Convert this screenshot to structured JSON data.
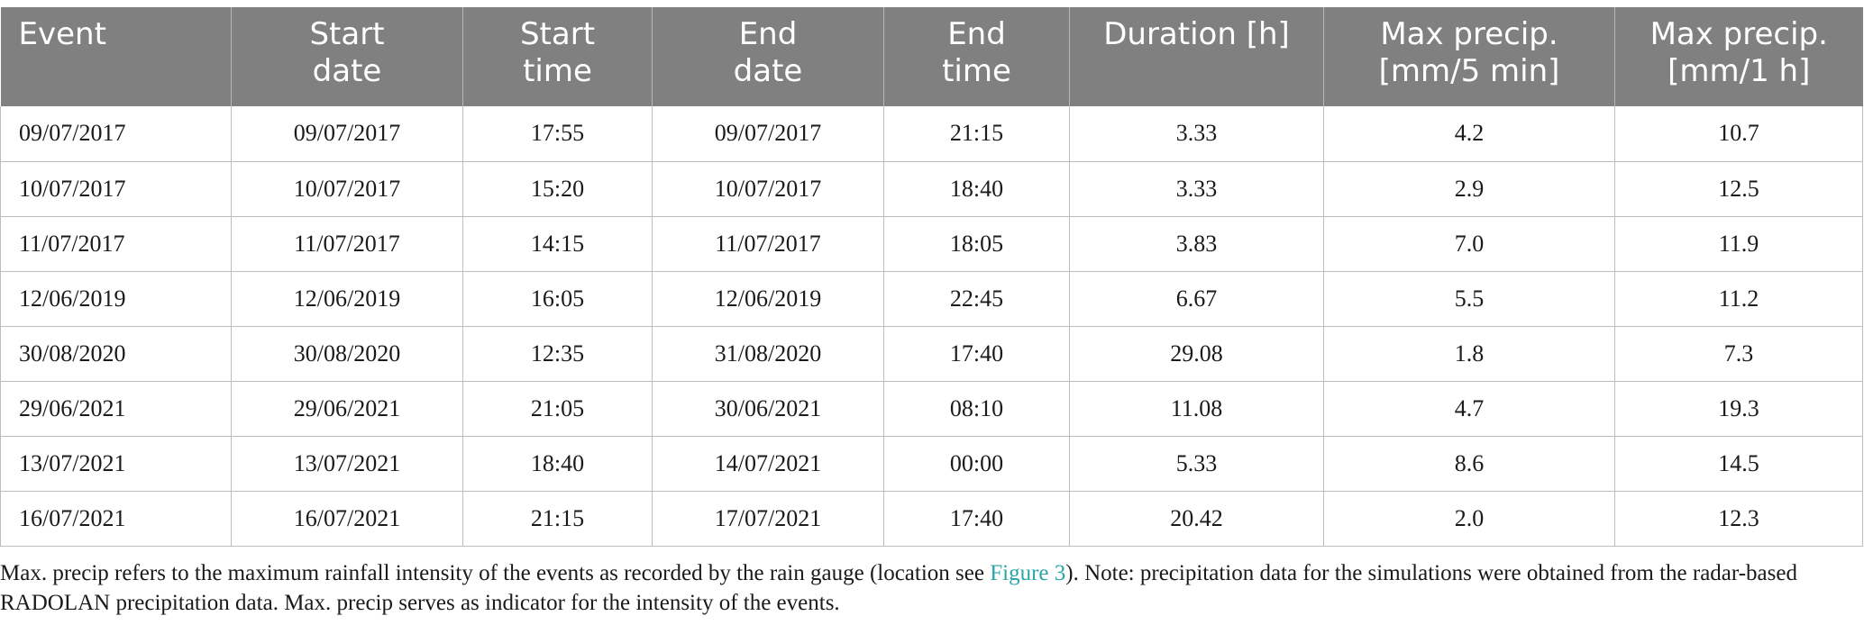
{
  "table": {
    "headers": [
      [
        "Event",
        ""
      ],
      [
        "Start",
        "date"
      ],
      [
        "Start",
        "time"
      ],
      [
        "End",
        "date"
      ],
      [
        "End",
        "time"
      ],
      [
        "Duration [h]",
        ""
      ],
      [
        "Max precip.",
        "[mm/5 min]"
      ],
      [
        "Max precip.",
        "[mm/1 h]"
      ]
    ],
    "rows": [
      [
        "09/07/2017",
        "09/07/2017",
        "17:55",
        "09/07/2017",
        "21:15",
        "3.33",
        "4.2",
        "10.7"
      ],
      [
        "10/07/2017",
        "10/07/2017",
        "15:20",
        "10/07/2017",
        "18:40",
        "3.33",
        "2.9",
        "12.5"
      ],
      [
        "11/07/2017",
        "11/07/2017",
        "14:15",
        "11/07/2017",
        "18:05",
        "3.83",
        "7.0",
        "11.9"
      ],
      [
        "12/06/2019",
        "12/06/2019",
        "16:05",
        "12/06/2019",
        "22:45",
        "6.67",
        "5.5",
        "11.2"
      ],
      [
        "30/08/2020",
        "30/08/2020",
        "12:35",
        "31/08/2020",
        "17:40",
        "29.08",
        "1.8",
        "7.3"
      ],
      [
        "29/06/2021",
        "29/06/2021",
        "21:05",
        "30/06/2021",
        "08:10",
        "11.08",
        "4.7",
        "19.3"
      ],
      [
        "13/07/2021",
        "13/07/2021",
        "18:40",
        "14/07/2021",
        "00:00",
        "5.33",
        "8.6",
        "14.5"
      ],
      [
        "16/07/2021",
        "16/07/2021",
        "21:15",
        "17/07/2021",
        "17:40",
        "20.42",
        "2.0",
        "12.3"
      ]
    ]
  },
  "footnote": {
    "before_link": "Max. precip refers to the maximum rainfall intensity of the events as recorded by the rain gauge (location see ",
    "link_text": "Figure 3",
    "after_link": "). Note: precipitation data for the simulations were obtained from the radar-based RADOLAN precipitation data. Max. precip serves as indicator for the intensity of the events."
  },
  "colors": {
    "header_bg": "#808080",
    "link": "#2aa6a6"
  }
}
